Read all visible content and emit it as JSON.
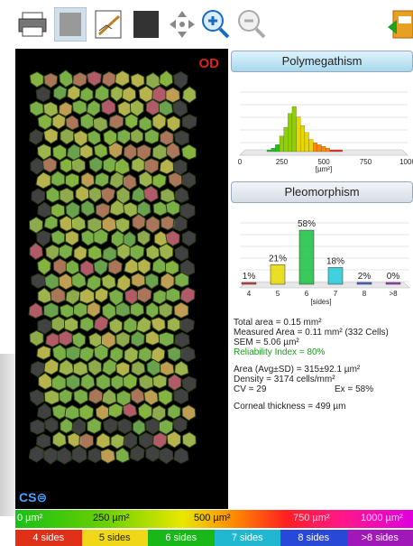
{
  "toolbar": {
    "buttons": [
      {
        "name": "printer-icon"
      },
      {
        "name": "cell-image-icon"
      },
      {
        "name": "trace-edit-icon"
      },
      {
        "name": "dark-image-icon"
      },
      {
        "name": "pan-arrows-icon"
      },
      {
        "name": "zoom-in-icon"
      },
      {
        "name": "zoom-out-icon"
      },
      {
        "name": "export-icon"
      }
    ]
  },
  "image": {
    "eye_label": "OD",
    "logo": "CS⊜"
  },
  "polymegathism": {
    "title": "Polymegathism",
    "chart_data": {
      "type": "bar",
      "x_ticks": [
        "0",
        "250",
        "500",
        "750",
        "1000"
      ],
      "xlabel": "[µm²]",
      "xlim": [
        0,
        1000
      ],
      "bins_x": [
        175,
        200,
        225,
        250,
        275,
        300,
        325,
        350,
        375,
        400,
        425,
        450,
        475,
        500,
        525,
        550,
        575,
        600
      ],
      "values": [
        1,
        2,
        4,
        9,
        14,
        22,
        26,
        20,
        15,
        11,
        7,
        5,
        4,
        3,
        2,
        1,
        1,
        1
      ]
    }
  },
  "pleomorphism": {
    "title": "Pleomorphism",
    "chart_data": {
      "type": "bar",
      "categories": [
        "4",
        "5",
        "6",
        "7",
        "8",
        ">8"
      ],
      "values": [
        1,
        21,
        58,
        18,
        2,
        0
      ],
      "labels": [
        "1%",
        "21%",
        "58%",
        "18%",
        "2%",
        "0%"
      ],
      "xlabel": "[sides]",
      "colors": [
        "#e02020",
        "#e8d800",
        "#18c040",
        "#20c8d8",
        "#3050e0",
        "#a020c0"
      ]
    }
  },
  "stats": {
    "total_area": "Total area = 0.15 mm²",
    "measured_area": "Measured Area = 0.11 mm² (332 Cells)",
    "sem": "SEM = 5.06 µm²",
    "reliability": "Reliability Index = 80%",
    "area_avg": "Area (Avg±SD) = 315±92.1 µm²",
    "density": "Density = 3174 cells/mm²",
    "cv": "CV = 29",
    "ex": "Ex = 58%",
    "thickness": "Corneal thickness = 499 µm"
  },
  "legend": {
    "area": [
      "0 µm²",
      "250 µm²",
      "500 µm²",
      "750 µm²",
      "1000 µm²"
    ],
    "sides": [
      {
        "label": "4 sides",
        "color": "#e03018",
        "text": "#ffffff"
      },
      {
        "label": "5 sides",
        "color": "#f0d818",
        "text": "#222222"
      },
      {
        "label": "6 sides",
        "color": "#18b818",
        "text": "#ffffff"
      },
      {
        "label": "7 sides",
        "color": "#20b8d0",
        "text": "#ffffff"
      },
      {
        "label": "8 sides",
        "color": "#2848d8",
        "text": "#ffffff"
      },
      {
        "label": ">8 sides",
        "color": "#a018b8",
        "text": "#ffffff"
      }
    ]
  }
}
